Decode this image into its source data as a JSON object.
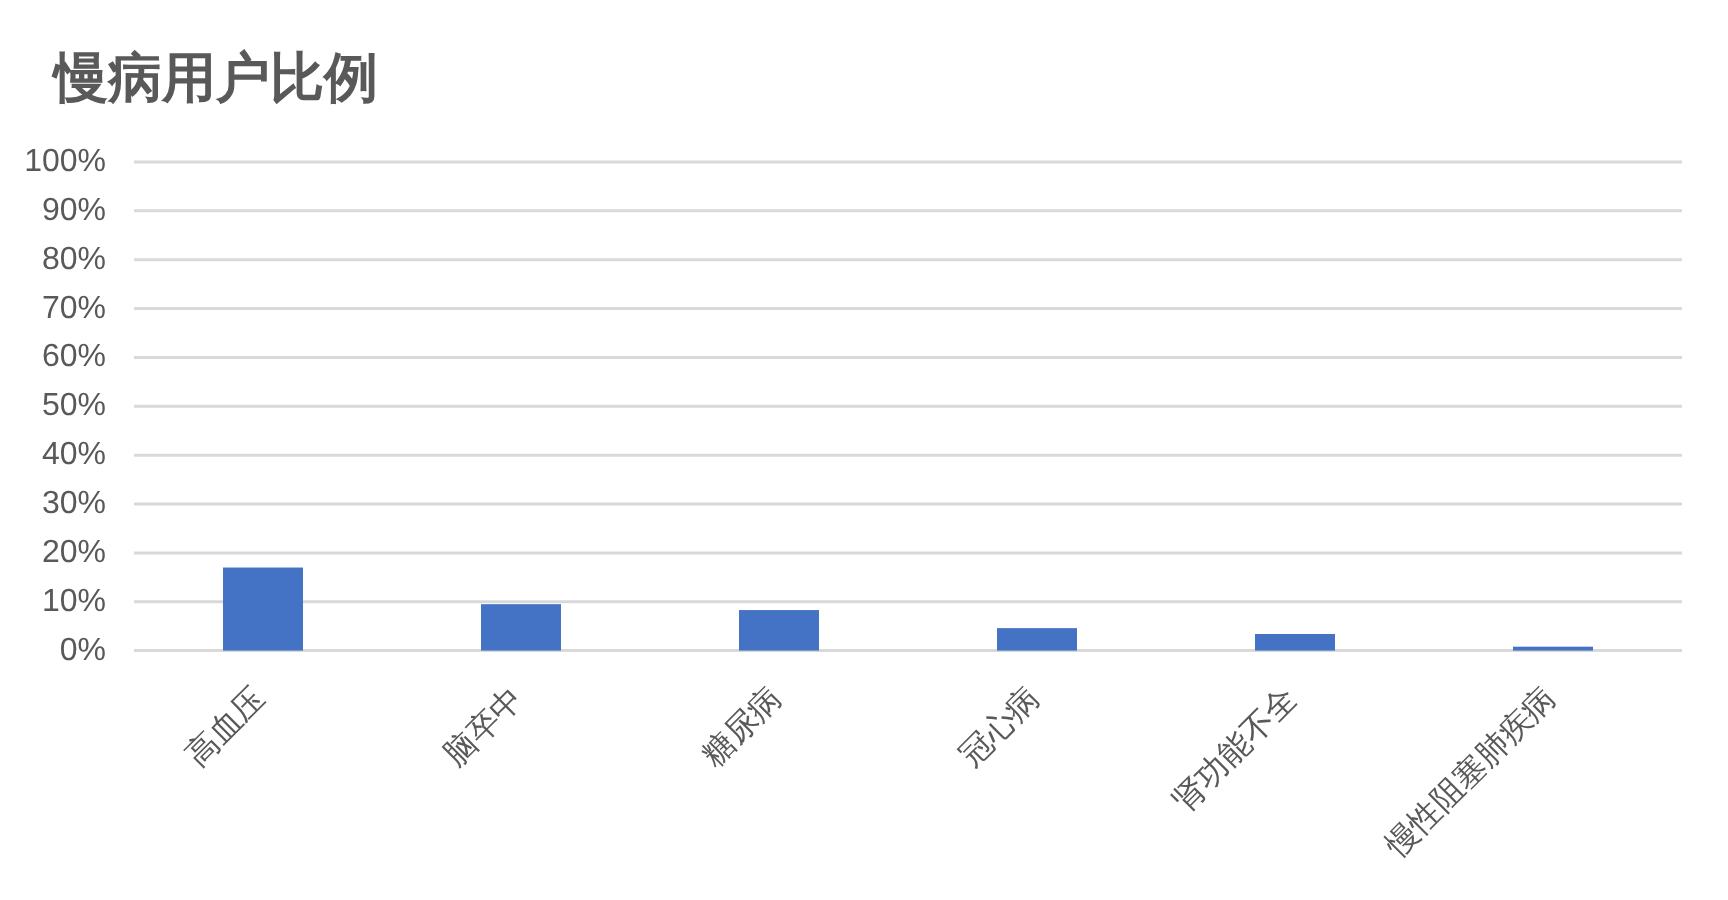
{
  "chart_data": {
    "type": "bar",
    "title": "慢病用户比例",
    "categories": [
      "高血压",
      "脑卒中",
      "糖尿病",
      "冠心病",
      "肾功能不全",
      "慢性阻塞肺疾病"
    ],
    "values": [
      17,
      9.5,
      8.3,
      4.6,
      3.4,
      0.8
    ],
    "color": "#4472c4",
    "ylim": [
      0,
      100
    ],
    "yticks": [
      {
        "value": 0,
        "label": "0%"
      },
      {
        "value": 10,
        "label": "10%"
      },
      {
        "value": 20,
        "label": "20%"
      },
      {
        "value": 30,
        "label": "30%"
      },
      {
        "value": 40,
        "label": "40%"
      },
      {
        "value": 50,
        "label": "50%"
      },
      {
        "value": 60,
        "label": "60%"
      },
      {
        "value": 70,
        "label": "70%"
      },
      {
        "value": 80,
        "label": "80%"
      },
      {
        "value": 90,
        "label": "90%"
      },
      {
        "value": 100,
        "label": "100%"
      }
    ],
    "grid": "y"
  }
}
